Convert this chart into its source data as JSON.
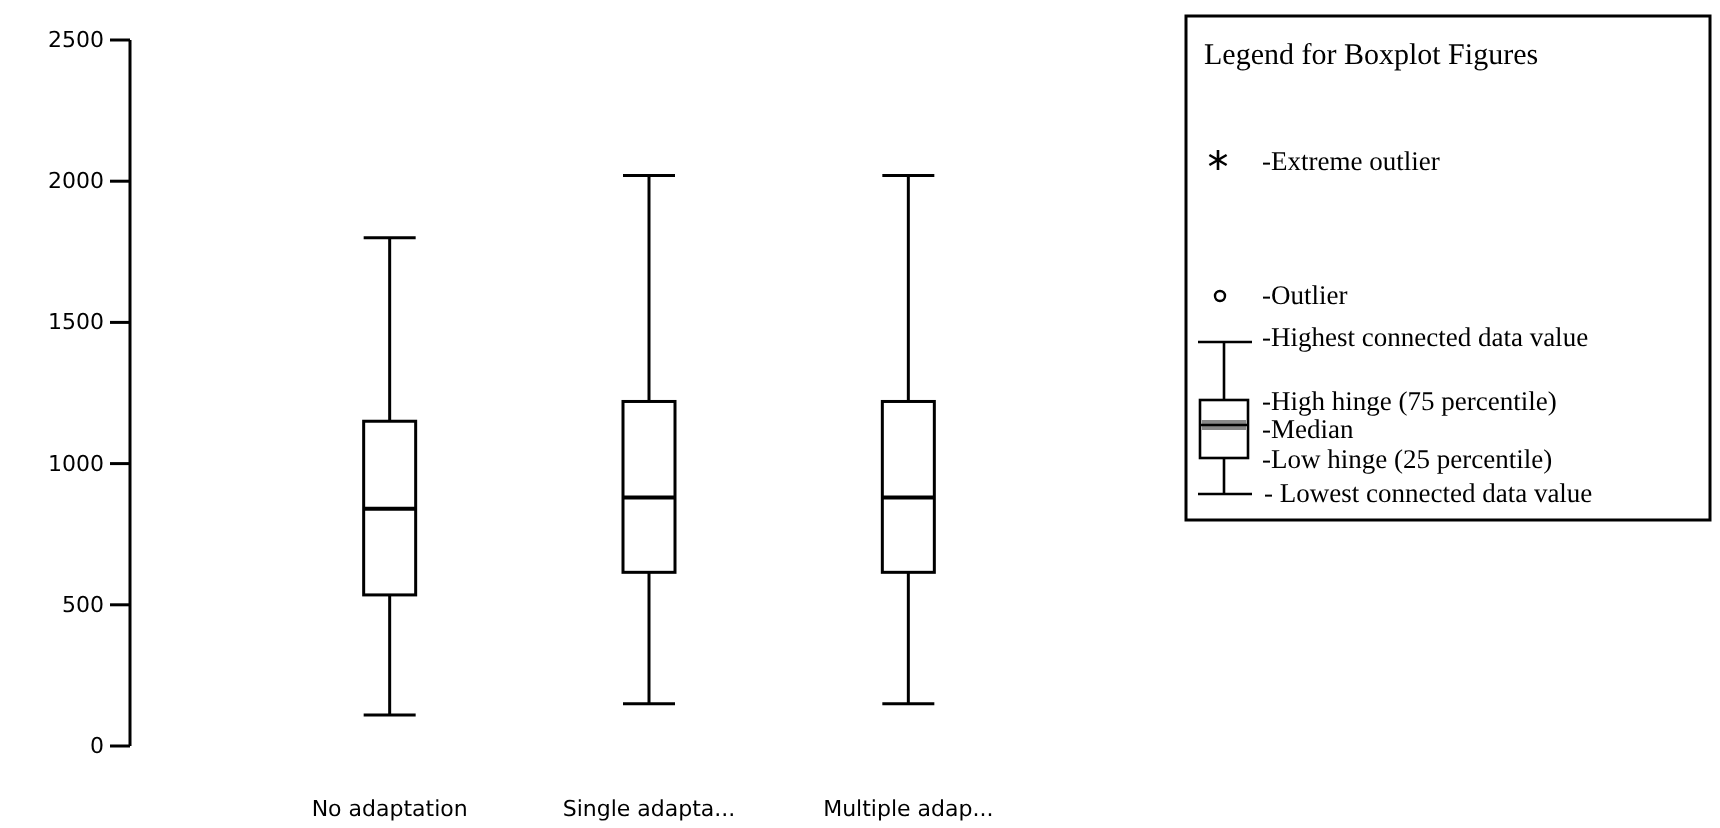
{
  "chart_data": {
    "type": "box",
    "categories": [
      "No adaptation",
      "Single adapta...",
      "Multiple adap..."
    ],
    "boxes": [
      {
        "low": 110,
        "q1": 535,
        "median": 840,
        "q3": 1150,
        "high": 1800
      },
      {
        "low": 150,
        "q1": 615,
        "median": 880,
        "q3": 1220,
        "high": 2020
      },
      {
        "low": 150,
        "q1": 615,
        "median": 880,
        "q3": 1220,
        "high": 2020
      }
    ],
    "ylim": [
      0,
      2500
    ],
    "yticks": [
      0,
      500,
      1000,
      1500,
      2000,
      2500
    ],
    "grid": false,
    "legend_title": "Legend for Boxplot Figures",
    "annotations": [
      "-Extreme outlier",
      "-Outlier",
      "-Highest connected data value",
      "-High hinge (75 percentile)",
      "-Median",
      "-Low hinge (25 percentile)",
      "- Lowest connected data value"
    ]
  }
}
